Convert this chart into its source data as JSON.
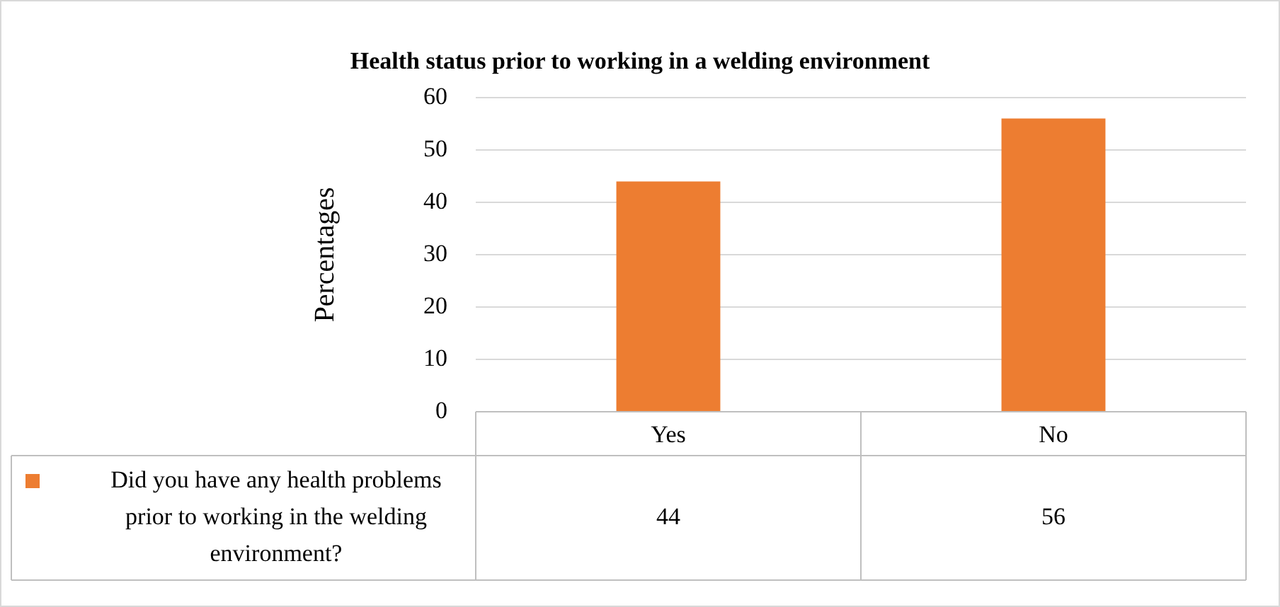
{
  "chart_data": {
    "type": "bar",
    "title": "Health status prior to working in a welding environment",
    "ylabel": "Percentages",
    "categories": [
      "Yes",
      "No"
    ],
    "series": [
      {
        "name": "Did you have any health problems prior to working in the welding environment?",
        "color": "#ed7d31",
        "values": [
          44,
          56
        ]
      }
    ],
    "ylim": [
      0,
      60
    ],
    "yticks": [
      0,
      10,
      20,
      30,
      40,
      50,
      60
    ],
    "grid": "y",
    "legend": "bottom left",
    "data_labels": true
  }
}
